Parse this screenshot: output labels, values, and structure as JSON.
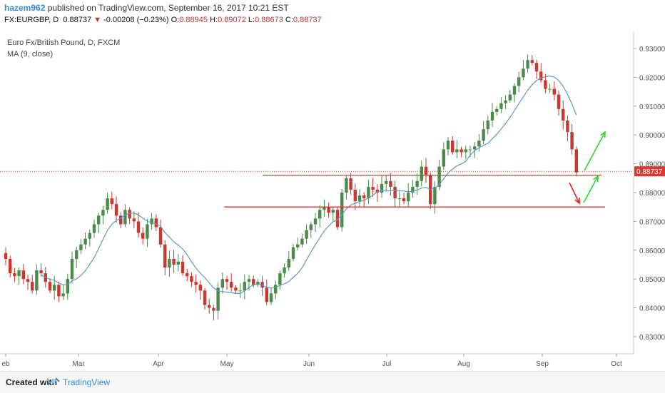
{
  "header": {
    "user": "hazem962",
    "published": " published on TradingView.com, September 16, 2017 10:21 EST",
    "symbol": "FX:EURGBP, D",
    "last": "0.88737",
    "change": "-0.00208 (−0.23%)",
    "o_label": "O:",
    "o_value": "0.88945",
    "h_label": "H:",
    "h_value": "0.89072",
    "l_label": "L:",
    "l_value": "0.88673",
    "c_label": "C:",
    "c_value": "0.88737"
  },
  "legend": {
    "title": "Euro Fx/British Pound, D, FXCM",
    "ma": "MA (9, close)"
  },
  "footer": {
    "created": "Created with",
    "brand": "TradingView"
  },
  "colors": {
    "up": "#4a8a4a",
    "down": "#c9372f",
    "ma": "#5b9bc8",
    "level_line": "#d63a3a",
    "arrow_down": "#e0261f",
    "arrow_up": "#2fd62f",
    "price_tag": "#d9392f"
  },
  "chart_data": {
    "type": "candlestick",
    "series_name": "FX:EURGBP, D",
    "ylim": [
      0.825,
      0.9325
    ],
    "y_ticks": [
      "0.93000",
      "0.92000",
      "0.91000",
      "0.90000",
      "0.89000",
      "0.88000",
      "0.87000",
      "0.86000",
      "0.85000",
      "0.84000",
      "0.83000"
    ],
    "x_ticks": [
      "eb",
      "Mar",
      "Apr",
      "May",
      "Jun",
      "Jul",
      "Aug",
      "Sep",
      "Oct"
    ],
    "current_price_label": "0.88737",
    "current_price": 0.88737,
    "resistance_levels": [
      0.886,
      0.875
    ],
    "closes": [
      0.857,
      0.852,
      0.851,
      0.853,
      0.85,
      0.849,
      0.846,
      0.853,
      0.852,
      0.849,
      0.846,
      0.848,
      0.844,
      0.845,
      0.85,
      0.857,
      0.86,
      0.862,
      0.864,
      0.866,
      0.869,
      0.872,
      0.874,
      0.878,
      0.876,
      0.872,
      0.869,
      0.874,
      0.871,
      0.87,
      0.866,
      0.864,
      0.869,
      0.871,
      0.868,
      0.862,
      0.854,
      0.857,
      0.855,
      0.856,
      0.852,
      0.851,
      0.849,
      0.848,
      0.846,
      0.841,
      0.84,
      0.839,
      0.847,
      0.85,
      0.849,
      0.847,
      0.846,
      0.846,
      0.849,
      0.85,
      0.848,
      0.849,
      0.847,
      0.842,
      0.845,
      0.848,
      0.852,
      0.854,
      0.857,
      0.861,
      0.862,
      0.864,
      0.867,
      0.869,
      0.871,
      0.874,
      0.875,
      0.873,
      0.874,
      0.868,
      0.88,
      0.885,
      0.881,
      0.877,
      0.879,
      0.878,
      0.882,
      0.881,
      0.88,
      0.883,
      0.884,
      0.882,
      0.878,
      0.878,
      0.877,
      0.88,
      0.882,
      0.884,
      0.889,
      0.886,
      0.876,
      0.882,
      0.889,
      0.895,
      0.898,
      0.894,
      0.895,
      0.894,
      0.895,
      0.895,
      0.896,
      0.898,
      0.902,
      0.905,
      0.908,
      0.909,
      0.911,
      0.912,
      0.914,
      0.917,
      0.92,
      0.923,
      0.926,
      0.925,
      0.922,
      0.919,
      0.916,
      0.916,
      0.914,
      0.909,
      0.905,
      0.901,
      0.895,
      0.887
    ],
    "ma_period": 9
  }
}
